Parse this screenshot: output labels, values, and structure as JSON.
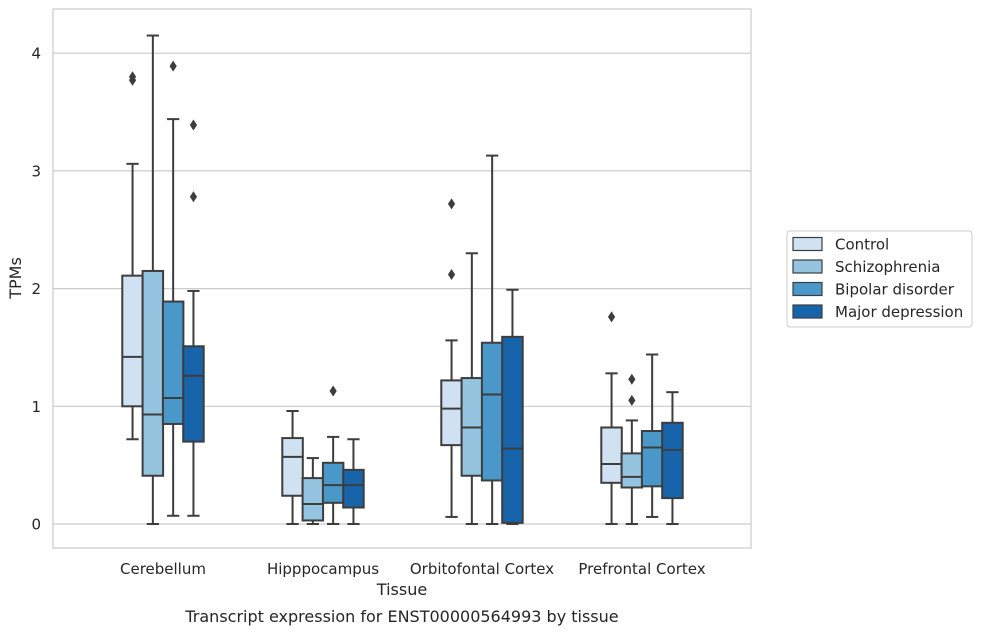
{
  "chart_data": {
    "type": "boxplot",
    "xlabel": "Tissue",
    "ylabel": "TPMs",
    "caption": "Transcript expression for ENST00000564993 by tissue",
    "ylim": [
      -0.2,
      4.35
    ],
    "yticks": [
      "0",
      "1",
      "2",
      "3",
      "4"
    ],
    "grid": "horizontal",
    "legend_position": "right",
    "categories": [
      "Cerebellum",
      "Hipppocampus",
      "Orbitofontal Cortex",
      "Prefrontal Cortex"
    ],
    "series": [
      {
        "name": "Control",
        "color": "#d0e1f2",
        "boxes": [
          {
            "whislo": 0.72,
            "q1": 1.0,
            "med": 1.42,
            "q3": 2.11,
            "whishi": 3.06,
            "fliers": [
              3.77,
              3.8
            ]
          },
          {
            "whislo": 0.0,
            "q1": 0.24,
            "med": 0.57,
            "q3": 0.73,
            "whishi": 0.96,
            "fliers": []
          },
          {
            "whislo": 0.06,
            "q1": 0.67,
            "med": 0.98,
            "q3": 1.22,
            "whishi": 1.56,
            "fliers": [
              2.12,
              2.72
            ]
          },
          {
            "whislo": 0.0,
            "q1": 0.35,
            "med": 0.51,
            "q3": 0.82,
            "whishi": 1.28,
            "fliers": [
              1.76
            ]
          }
        ]
      },
      {
        "name": "Schizophrenia",
        "color": "#94c4df",
        "boxes": [
          {
            "whislo": 0.0,
            "q1": 0.41,
            "med": 0.93,
            "q3": 2.15,
            "whishi": 4.15,
            "fliers": []
          },
          {
            "whislo": 0.0,
            "q1": 0.03,
            "med": 0.17,
            "q3": 0.39,
            "whishi": 0.56,
            "fliers": []
          },
          {
            "whislo": 0.0,
            "q1": 0.41,
            "med": 0.82,
            "q3": 1.24,
            "whishi": 2.3,
            "fliers": []
          },
          {
            "whislo": 0.0,
            "q1": 0.31,
            "med": 0.4,
            "q3": 0.6,
            "whishi": 0.88,
            "fliers": [
              1.05,
              1.23
            ]
          }
        ]
      },
      {
        "name": "Bipolar disorder",
        "color": "#4a98c9",
        "boxes": [
          {
            "whislo": 0.07,
            "q1": 0.85,
            "med": 1.07,
            "q3": 1.89,
            "whishi": 3.44,
            "fliers": [
              3.89
            ]
          },
          {
            "whislo": 0.0,
            "q1": 0.18,
            "med": 0.33,
            "q3": 0.52,
            "whishi": 0.74,
            "fliers": [
              1.13
            ]
          },
          {
            "whislo": 0.0,
            "q1": 0.37,
            "med": 1.1,
            "q3": 1.54,
            "whishi": 3.13,
            "fliers": []
          },
          {
            "whislo": 0.06,
            "q1": 0.32,
            "med": 0.65,
            "q3": 0.79,
            "whishi": 1.44,
            "fliers": []
          }
        ]
      },
      {
        "name": "Major depression",
        "color": "#1764ab",
        "boxes": [
          {
            "whislo": 0.07,
            "q1": 0.7,
            "med": 1.26,
            "q3": 1.51,
            "whishi": 1.98,
            "fliers": [
              2.78,
              3.39
            ]
          },
          {
            "whislo": 0.0,
            "q1": 0.14,
            "med": 0.33,
            "q3": 0.46,
            "whishi": 0.72,
            "fliers": []
          },
          {
            "whislo": 0.0,
            "q1": 0.01,
            "med": 0.64,
            "q3": 1.59,
            "whishi": 1.99,
            "fliers": []
          },
          {
            "whislo": 0.0,
            "q1": 0.22,
            "med": 0.63,
            "q3": 0.86,
            "whishi": 1.12,
            "fliers": []
          }
        ]
      }
    ]
  }
}
